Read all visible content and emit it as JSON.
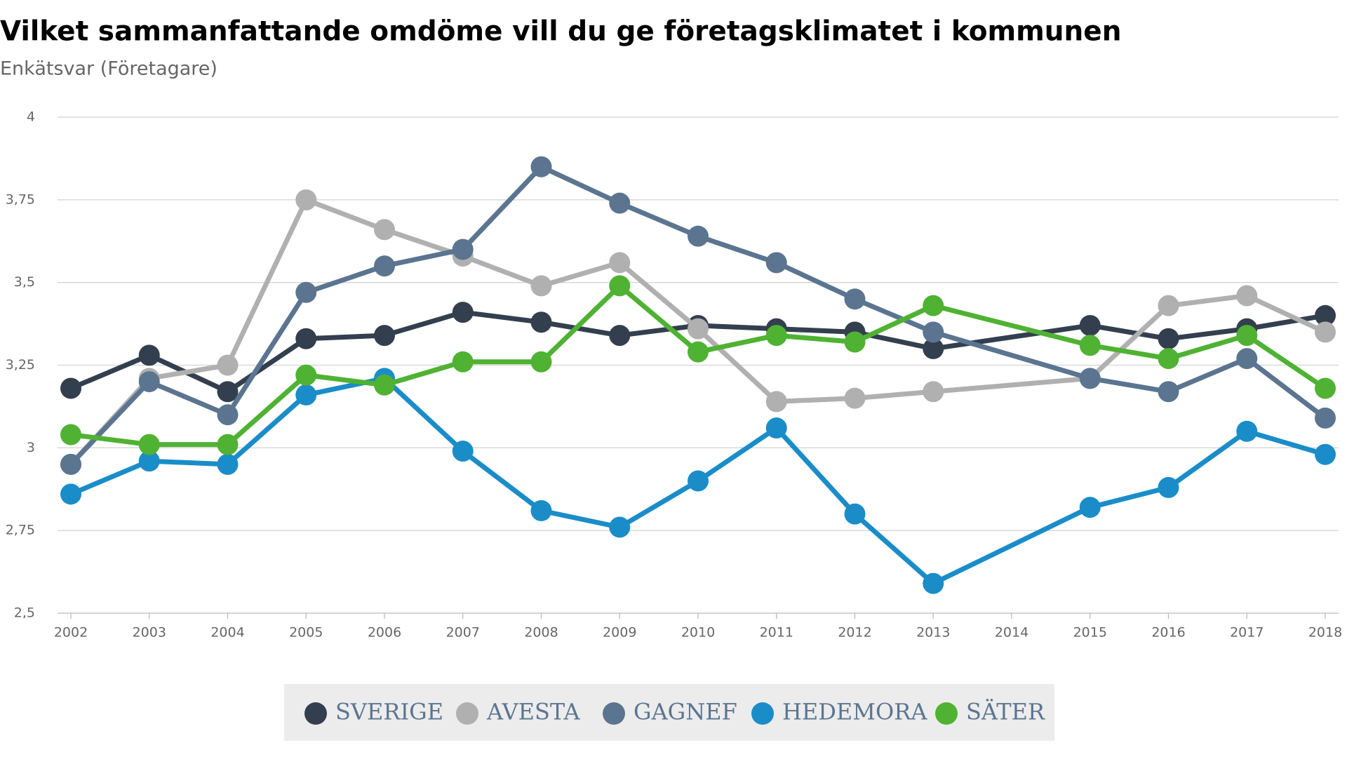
{
  "chart_data": {
    "type": "line",
    "title": "Vilket sammanfattande omdöme vill du ge företagsklimatet i kommunen",
    "subtitle": "Enkätsvar (Företagare)",
    "x": [
      2002,
      2003,
      2004,
      2005,
      2006,
      2007,
      2008,
      2009,
      2010,
      2011,
      2012,
      2013,
      2015,
      2016,
      2017,
      2018
    ],
    "xlim": [
      2002,
      2018
    ],
    "xticks": [
      2002,
      2003,
      2004,
      2005,
      2006,
      2007,
      2008,
      2009,
      2010,
      2011,
      2012,
      2013,
      2014,
      2015,
      2016,
      2017,
      2018
    ],
    "ylim": [
      2.5,
      4
    ],
    "yticks": [
      {
        "value": 2.5,
        "label": "2,5"
      },
      {
        "value": 2.75,
        "label": "2,75"
      },
      3,
      {
        "value": 3.25,
        "label": "3,25"
      },
      {
        "value": 3.5,
        "label": "3,5"
      },
      {
        "value": 3.75,
        "label": "3,75"
      },
      4
    ],
    "grid": true,
    "legend": "bottom",
    "series": [
      {
        "name": "SVERIGE",
        "color": "#333f4f",
        "values": [
          3.18,
          3.28,
          3.17,
          3.33,
          3.34,
          3.41,
          3.38,
          3.34,
          3.37,
          3.36,
          3.35,
          3.3,
          3.37,
          3.33,
          3.36,
          3.4
        ]
      },
      {
        "name": "AVESTA",
        "color": "#b0b0b0",
        "values": [
          2.95,
          3.21,
          3.25,
          3.75,
          3.66,
          3.58,
          3.49,
          3.56,
          3.36,
          3.14,
          3.15,
          3.17,
          3.21,
          3.43,
          3.46,
          3.35
        ]
      },
      {
        "name": "GAGNEF",
        "color": "#5b7590",
        "values": [
          2.95,
          3.2,
          3.1,
          3.47,
          3.55,
          3.6,
          3.85,
          3.74,
          3.64,
          3.56,
          3.45,
          3.35,
          3.21,
          3.17,
          3.27,
          3.09
        ]
      },
      {
        "name": "HEDEMORA",
        "color": "#1a8dc8",
        "values": [
          2.86,
          2.96,
          2.95,
          3.16,
          3.21,
          2.99,
          2.81,
          2.76,
          2.9,
          3.06,
          2.8,
          2.59,
          2.82,
          2.88,
          3.05,
          2.98
        ]
      },
      {
        "name": "SÄTER",
        "color": "#4fb233",
        "values": [
          3.04,
          3.01,
          3.01,
          3.22,
          3.19,
          3.26,
          3.26,
          3.49,
          3.29,
          3.34,
          3.32,
          3.43,
          3.31,
          3.27,
          3.34,
          3.18
        ]
      }
    ]
  }
}
